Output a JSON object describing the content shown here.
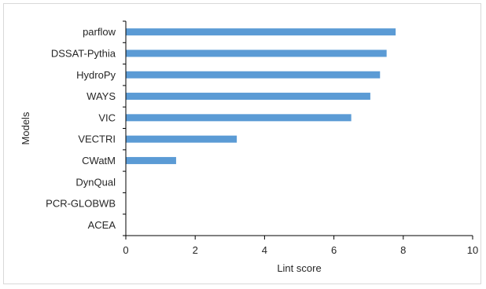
{
  "chart_data": {
    "type": "bar",
    "orientation": "horizontal",
    "categories": [
      "parflow",
      "DSSAT-Pythia",
      "HydroPy",
      "WAYS",
      "VIC",
      "VECTRI",
      "CWatM",
      "DynQual",
      "PCR-GLOBWB",
      "ACEA"
    ],
    "values": [
      7.78,
      7.52,
      7.33,
      7.05,
      6.5,
      3.2,
      1.45,
      0,
      0,
      0
    ],
    "xlabel": "Lint score",
    "ylabel": "Models",
    "xlim": [
      0,
      10
    ],
    "xticks": [
      "0",
      "2",
      "4",
      "6",
      "8",
      "10"
    ],
    "grid": false,
    "legend": "none",
    "bar_color": "#5b9bd5",
    "axis_color": "#000000"
  }
}
